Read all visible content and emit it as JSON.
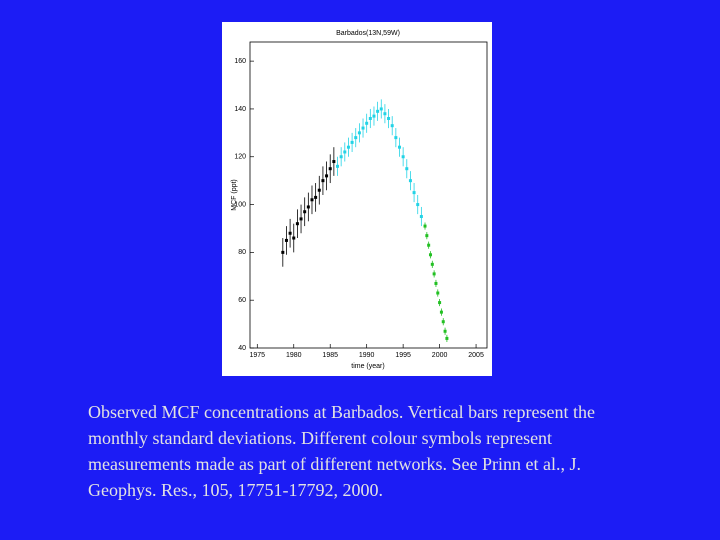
{
  "chart_data": {
    "type": "scatter",
    "title": "Barbados(13N,59W)",
    "x_label": "time (year)",
    "y_label": "MCF (ppt)",
    "xlim": [
      1974,
      2006.5
    ],
    "ylim": [
      40,
      168
    ],
    "xticks": [
      1975,
      1980,
      1985,
      1990,
      1995,
      2000,
      2005
    ],
    "yticks": [
      40,
      60,
      80,
      100,
      120,
      140,
      160
    ],
    "series": [
      {
        "color": "#000000",
        "x": [
          1978.5,
          1979,
          1979.5,
          1980,
          1980.5,
          1981,
          1981.5,
          1982,
          1982.5,
          1983,
          1983.5,
          1984,
          1984.5,
          1985,
          1985.5
        ],
        "values": [
          80,
          85,
          88,
          86,
          92,
          94,
          97,
          99,
          102,
          103,
          106,
          110,
          112,
          115,
          118
        ],
        "errors": [
          6,
          6,
          6,
          6,
          6,
          6,
          6,
          6,
          6,
          6,
          6,
          6,
          6,
          6,
          6
        ]
      },
      {
        "color": "#22d3e6",
        "x": [
          1986,
          1986.5,
          1987,
          1987.5,
          1988,
          1988.5,
          1989,
          1989.5,
          1990,
          1990.5,
          1991,
          1991.5,
          1992,
          1992.5,
          1993,
          1993.5,
          1994,
          1994.5,
          1995,
          1995.5,
          1996,
          1996.5,
          1997,
          1997.5
        ],
        "values": [
          116,
          120,
          122,
          124,
          126,
          128,
          130,
          132,
          134,
          136,
          137,
          139,
          140,
          138,
          136,
          133,
          128,
          124,
          120,
          115,
          110,
          105,
          100,
          95
        ],
        "errors": [
          4,
          4,
          4,
          4,
          4,
          4,
          4,
          4,
          4,
          4,
          4,
          4,
          4,
          4,
          4,
          4,
          4,
          4,
          4,
          4,
          4,
          4,
          4,
          4
        ]
      },
      {
        "color": "#22c022",
        "x": [
          1998,
          1998.25,
          1998.5,
          1998.75,
          1999,
          1999.25,
          1999.5,
          1999.75,
          2000,
          2000.25,
          2000.5,
          2000.75,
          2001
        ],
        "values": [
          91,
          87,
          83,
          79,
          75,
          71,
          67,
          63,
          59,
          55,
          51,
          47,
          44
        ],
        "errors": [
          1.5,
          1.5,
          1.5,
          1.5,
          1.5,
          1.5,
          1.5,
          1.5,
          1.5,
          1.5,
          1.5,
          1.5,
          1.5
        ]
      }
    ]
  },
  "caption_lines": [
    "Observed MCF concentrations at Barbados.  Vertical bars represent the",
    "monthly standard deviations.  Different colour symbols represent",
    "measurements made as part of different networks.  See Prinn et al., J.",
    "Geophys. Res., 105, 17751-17792, 2000."
  ]
}
